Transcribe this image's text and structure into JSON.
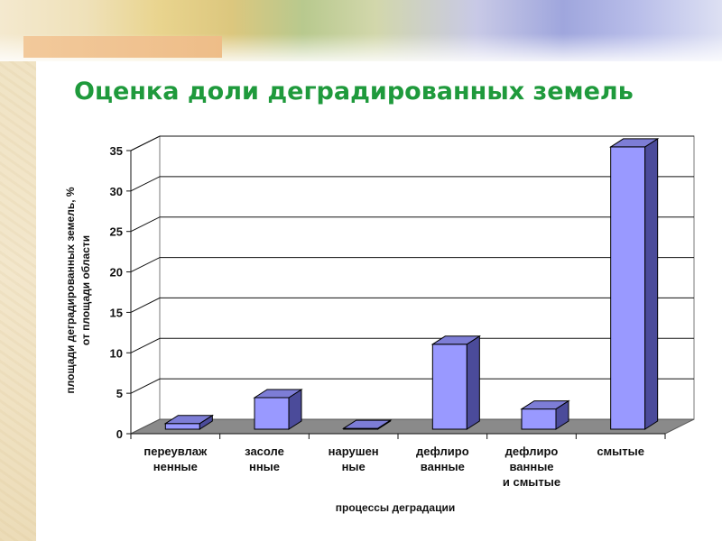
{
  "slide": {
    "title": "Оценка доли деградированных земель"
  },
  "chart_data": {
    "type": "bar",
    "style": "3d-column",
    "categories": [
      [
        "переувлаж",
        "ненные"
      ],
      [
        "засоле",
        "нные"
      ],
      [
        "нарушен",
        "ные"
      ],
      [
        "дефлиро",
        "ванные"
      ],
      [
        "дефлиро",
        "ванные",
        "и смытые"
      ],
      [
        "смытые"
      ]
    ],
    "values": [
      0.7,
      3.9,
      0.1,
      10.5,
      2.5,
      34.9
    ],
    "ylim": [
      0,
      35
    ],
    "yticks": [
      "0",
      "5",
      "10",
      "15",
      "20",
      "25",
      "30",
      "35"
    ],
    "xlabel": "процессы деградации",
    "ylabel": [
      "площади деградированных земель, %",
      "от площади области"
    ],
    "grid": true,
    "legend": "none",
    "colors": {
      "bar_front": "#9999ff",
      "bar_side": "#4b4b9a",
      "bar_top": "#7d7dd6",
      "floor": "#8a8a8a"
    }
  }
}
